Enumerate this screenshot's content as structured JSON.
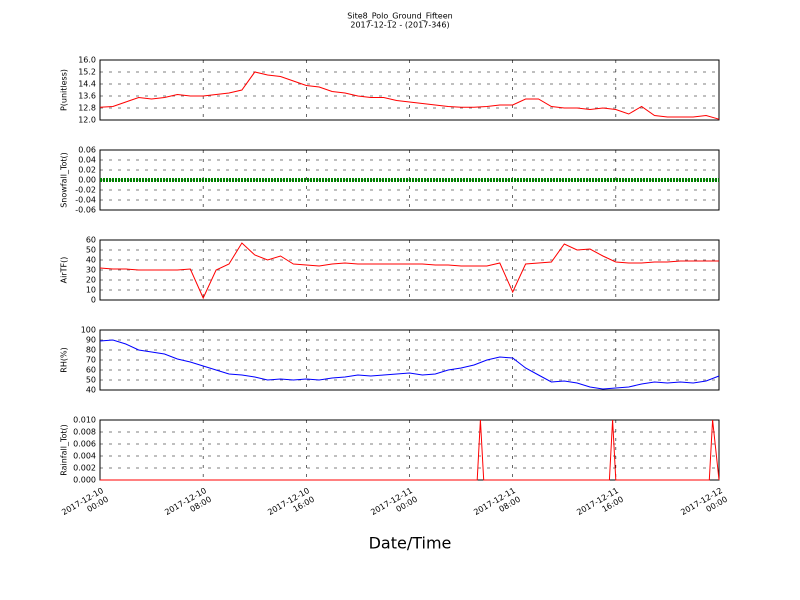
{
  "chart_data": [
    {
      "type": "line",
      "title": "Site8_Polo_Ground_Fifteen",
      "subtitle": "2017-12-12 - (2017-346)",
      "ylabel": "P(unitless)",
      "xlim": [
        "2017-12-10 00:00",
        "2017-12-12 00:00"
      ],
      "ylim": [
        12.0,
        16.0
      ],
      "yticks": [
        {
          "value": 12.0,
          "label": "12.0"
        },
        12.8,
        13.6,
        14.4,
        15.2,
        {
          "value": 16.0,
          "label": "16.0"
        }
      ],
      "grid": true,
      "x": [
        "2017-12-10 00:00",
        "2017-12-10 01:00",
        "2017-12-10 02:00",
        "2017-12-10 03:00",
        "2017-12-10 04:00",
        "2017-12-10 05:00",
        "2017-12-10 06:00",
        "2017-12-10 07:00",
        "2017-12-10 08:00",
        "2017-12-10 09:00",
        "2017-12-10 10:00",
        "2017-12-10 11:00",
        "2017-12-10 12:00",
        "2017-12-10 13:00",
        "2017-12-10 14:00",
        "2017-12-10 15:00",
        "2017-12-10 16:00",
        "2017-12-10 17:00",
        "2017-12-10 18:00",
        "2017-12-10 19:00",
        "2017-12-10 20:00",
        "2017-12-10 21:00",
        "2017-12-10 22:00",
        "2017-12-10 23:00",
        "2017-12-11 00:00",
        "2017-12-11 01:00",
        "2017-12-11 02:00",
        "2017-12-11 03:00",
        "2017-12-11 04:00",
        "2017-12-11 05:00",
        "2017-12-11 06:00",
        "2017-12-11 07:00",
        "2017-12-11 08:00",
        "2017-12-11 09:00",
        "2017-12-11 10:00",
        "2017-12-11 11:00",
        "2017-12-11 12:00",
        "2017-12-11 13:00",
        "2017-12-11 14:00",
        "2017-12-11 15:00",
        "2017-12-11 16:00",
        "2017-12-11 17:00",
        "2017-12-11 18:00",
        "2017-12-11 19:00",
        "2017-12-11 20:00",
        "2017-12-11 21:00",
        "2017-12-11 22:00",
        "2017-12-11 23:00",
        "2017-12-12 00:00"
      ],
      "series": [
        {
          "color": "#ff0000",
          "values": [
            12.85,
            12.9,
            13.2,
            13.5,
            13.4,
            13.5,
            13.7,
            13.6,
            13.6,
            13.7,
            13.8,
            14.0,
            15.2,
            15.0,
            14.9,
            14.6,
            14.3,
            14.2,
            13.9,
            13.8,
            13.6,
            13.5,
            13.5,
            13.3,
            13.2,
            13.1,
            13.0,
            12.9,
            12.85,
            12.85,
            12.9,
            13.0,
            13.0,
            13.4,
            13.4,
            12.9,
            12.8,
            12.8,
            12.7,
            12.8,
            12.7,
            12.4,
            12.9,
            12.3,
            12.2,
            12.2,
            12.2,
            12.3,
            12.05
          ]
        }
      ]
    },
    {
      "type": "line",
      "ylabel": "Snowfall_Tot()",
      "xlim": [
        "2017-12-10 00:00",
        "2017-12-12 00:00"
      ],
      "ylim": [
        -0.06,
        0.06
      ],
      "yticks": [
        -0.06,
        -0.04,
        -0.02,
        {
          "value": 0,
          "label": "0.00"
        },
        0.02,
        0.04,
        0.06
      ],
      "grid": true,
      "x": [
        "2017-12-10 00:00",
        "2017-12-10 01:00",
        "2017-12-10 02:00",
        "2017-12-10 03:00",
        "2017-12-10 04:00",
        "2017-12-10 05:00",
        "2017-12-10 06:00",
        "2017-12-10 07:00",
        "2017-12-10 08:00",
        "2017-12-10 09:00",
        "2017-12-10 10:00",
        "2017-12-10 11:00",
        "2017-12-10 12:00",
        "2017-12-10 13:00",
        "2017-12-10 14:00",
        "2017-12-10 15:00",
        "2017-12-10 16:00",
        "2017-12-10 17:00",
        "2017-12-10 18:00",
        "2017-12-10 19:00",
        "2017-12-10 20:00",
        "2017-12-10 21:00",
        "2017-12-10 22:00",
        "2017-12-10 23:00",
        "2017-12-11 00:00",
        "2017-12-11 01:00",
        "2017-12-11 02:00",
        "2017-12-11 03:00",
        "2017-12-11 04:00",
        "2017-12-11 05:00",
        "2017-12-11 06:00",
        "2017-12-11 07:00",
        "2017-12-11 08:00",
        "2017-12-11 09:00",
        "2017-12-11 10:00",
        "2017-12-11 11:00",
        "2017-12-11 12:00",
        "2017-12-11 13:00",
        "2017-12-11 14:00",
        "2017-12-11 15:00",
        "2017-12-11 16:00",
        "2017-12-11 17:00",
        "2017-12-11 18:00",
        "2017-12-11 19:00",
        "2017-12-11 20:00",
        "2017-12-11 21:00",
        "2017-12-11 22:00",
        "2017-12-11 23:00",
        "2017-12-12 00:00"
      ],
      "series": [
        {
          "color": "#008000",
          "values": [
            0,
            0,
            0,
            0,
            0,
            0,
            0,
            0,
            0,
            0,
            0,
            0,
            0,
            0,
            0,
            0,
            0,
            0,
            0,
            0,
            0,
            0,
            0,
            0,
            0,
            0,
            0,
            0,
            0,
            0,
            0,
            0,
            0,
            0,
            0,
            0,
            0,
            0,
            0,
            0,
            0,
            0,
            0,
            0,
            0,
            0,
            0,
            0,
            0
          ]
        }
      ]
    },
    {
      "type": "line",
      "ylabel": "AirTF()",
      "xlim": [
        "2017-12-10 00:00",
        "2017-12-12 00:00"
      ],
      "ylim": [
        0,
        60
      ],
      "yticks": [
        0,
        10,
        20,
        30,
        40,
        50,
        60
      ],
      "grid": true,
      "x": [
        "2017-12-10 00:00",
        "2017-12-10 01:00",
        "2017-12-10 02:00",
        "2017-12-10 03:00",
        "2017-12-10 04:00",
        "2017-12-10 05:00",
        "2017-12-10 06:00",
        "2017-12-10 07:00",
        "2017-12-10 08:00",
        "2017-12-10 09:00",
        "2017-12-10 10:00",
        "2017-12-10 11:00",
        "2017-12-10 12:00",
        "2017-12-10 13:00",
        "2017-12-10 14:00",
        "2017-12-10 15:00",
        "2017-12-10 16:00",
        "2017-12-10 17:00",
        "2017-12-10 18:00",
        "2017-12-10 19:00",
        "2017-12-10 20:00",
        "2017-12-10 21:00",
        "2017-12-10 22:00",
        "2017-12-10 23:00",
        "2017-12-11 00:00",
        "2017-12-11 01:00",
        "2017-12-11 02:00",
        "2017-12-11 03:00",
        "2017-12-11 04:00",
        "2017-12-11 05:00",
        "2017-12-11 06:00",
        "2017-12-11 07:00",
        "2017-12-11 08:00",
        "2017-12-11 09:00",
        "2017-12-11 10:00",
        "2017-12-11 11:00",
        "2017-12-11 12:00",
        "2017-12-11 13:00",
        "2017-12-11 14:00",
        "2017-12-11 15:00",
        "2017-12-11 16:00",
        "2017-12-11 17:00",
        "2017-12-11 18:00",
        "2017-12-11 19:00",
        "2017-12-11 20:00",
        "2017-12-11 21:00",
        "2017-12-11 22:00",
        "2017-12-11 23:00",
        "2017-12-12 00:00"
      ],
      "series": [
        {
          "color": "#ff0000",
          "values": [
            32,
            31,
            31,
            30,
            30,
            30,
            30,
            31,
            2,
            30,
            36,
            57,
            45,
            40,
            44,
            36,
            35,
            34,
            36,
            37,
            36,
            36,
            36,
            36,
            36,
            36,
            35,
            35,
            34,
            34,
            34,
            37,
            8,
            36,
            37,
            38,
            56,
            50,
            51,
            44,
            38,
            37,
            37,
            38,
            38,
            39,
            39,
            39,
            39
          ]
        }
      ]
    },
    {
      "type": "line",
      "ylabel": "RH(%)",
      "xlim": [
        "2017-12-10 00:00",
        "2017-12-12 00:00"
      ],
      "ylim": [
        40,
        100
      ],
      "yticks": [
        40,
        50,
        60,
        70,
        80,
        90,
        100
      ],
      "grid": true,
      "x": [
        "2017-12-10 00:00",
        "2017-12-10 01:00",
        "2017-12-10 02:00",
        "2017-12-10 03:00",
        "2017-12-10 04:00",
        "2017-12-10 05:00",
        "2017-12-10 06:00",
        "2017-12-10 07:00",
        "2017-12-10 08:00",
        "2017-12-10 09:00",
        "2017-12-10 10:00",
        "2017-12-10 11:00",
        "2017-12-10 12:00",
        "2017-12-10 13:00",
        "2017-12-10 14:00",
        "2017-12-10 15:00",
        "2017-12-10 16:00",
        "2017-12-10 17:00",
        "2017-12-10 18:00",
        "2017-12-10 19:00",
        "2017-12-10 20:00",
        "2017-12-10 21:00",
        "2017-12-10 22:00",
        "2017-12-10 23:00",
        "2017-12-11 00:00",
        "2017-12-11 01:00",
        "2017-12-11 02:00",
        "2017-12-11 03:00",
        "2017-12-11 04:00",
        "2017-12-11 05:00",
        "2017-12-11 06:00",
        "2017-12-11 07:00",
        "2017-12-11 08:00",
        "2017-12-11 09:00",
        "2017-12-11 10:00",
        "2017-12-11 11:00",
        "2017-12-11 12:00",
        "2017-12-11 13:00",
        "2017-12-11 14:00",
        "2017-12-11 15:00",
        "2017-12-11 16:00",
        "2017-12-11 17:00",
        "2017-12-11 18:00",
        "2017-12-11 19:00",
        "2017-12-11 20:00",
        "2017-12-11 21:00",
        "2017-12-11 22:00",
        "2017-12-11 23:00",
        "2017-12-12 00:00"
      ],
      "series": [
        {
          "color": "#0000ff",
          "values": [
            89,
            90,
            86,
            80,
            78,
            76,
            71,
            68,
            64,
            60,
            56,
            55,
            53,
            50,
            51,
            50,
            51,
            50,
            52,
            53,
            55,
            54,
            55,
            56,
            57,
            55,
            56,
            60,
            62,
            65,
            70,
            73,
            72,
            62,
            55,
            48,
            49,
            47,
            43,
            41,
            42,
            43,
            46,
            48,
            47,
            48,
            47,
            49,
            54
          ]
        }
      ]
    },
    {
      "type": "line",
      "ylabel": "Rainfall_Tot()",
      "xlabel": "Date/Time",
      "xlim": [
        "2017-12-10 00:00",
        "2017-12-12 00:00"
      ],
      "ylim": [
        0,
        0.01
      ],
      "yticks": [
        {
          "value": 0,
          "label": "0.000"
        },
        0.002,
        0.004,
        0.006,
        0.008,
        {
          "value": 0.01,
          "label": "0.010"
        }
      ],
      "grid": true,
      "xticks": [
        {
          "value": "2017-12-10 00:00",
          "label": "2017-12-10\n00:00"
        },
        {
          "value": "2017-12-10 08:00",
          "label": "2017-12-10\n08:00"
        },
        {
          "value": "2017-12-10 16:00",
          "label": "2017-12-10\n16:00"
        },
        {
          "value": "2017-12-11 00:00",
          "label": "2017-12-11\n00:00"
        },
        {
          "value": "2017-12-11 08:00",
          "label": "2017-12-11\n08:00"
        },
        {
          "value": "2017-12-11 16:00",
          "label": "2017-12-11\n16:00"
        },
        {
          "value": "2017-12-12 00:00",
          "label": "2017-12-12\n00:00"
        }
      ],
      "x": [
        "2017-12-10 00:00",
        "2017-12-11 05:15",
        "2017-12-11 05:30",
        "2017-12-11 05:45",
        "2017-12-11 15:30",
        "2017-12-11 15:45",
        "2017-12-11 16:00",
        "2017-12-11 23:15",
        "2017-12-11 23:30",
        "2017-12-12 00:00"
      ],
      "series": [
        {
          "color": "#ff0000",
          "values": [
            0,
            0,
            0.01,
            0,
            0,
            0.01,
            0,
            0,
            0.01,
            0
          ]
        }
      ]
    }
  ]
}
